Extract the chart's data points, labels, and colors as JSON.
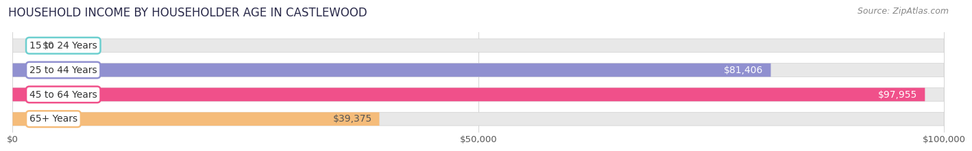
{
  "title": "HOUSEHOLD INCOME BY HOUSEHOLDER AGE IN CASTLEWOOD",
  "source": "Source: ZipAtlas.com",
  "categories": [
    "15 to 24 Years",
    "25 to 44 Years",
    "45 to 64 Years",
    "65+ Years"
  ],
  "values": [
    0,
    81406,
    97955,
    39375
  ],
  "bar_colors": [
    "#6dcfcf",
    "#9090d0",
    "#f0508a",
    "#f5bc7a"
  ],
  "label_text_color": "#333333",
  "xlim": [
    0,
    100000
  ],
  "xticks": [
    0,
    50000,
    100000
  ],
  "xtick_labels": [
    "$0",
    "$50,000",
    "$100,000"
  ],
  "background_color": "#ffffff",
  "bar_bg_color": "#e8e8e8",
  "bar_bg_border_color": "#d0d0d0",
  "title_fontsize": 12,
  "tick_fontsize": 9.5,
  "source_fontsize": 9,
  "cat_fontsize": 10,
  "val_fontsize": 10,
  "value_labels": [
    "$0",
    "$81,406",
    "$97,955",
    "$39,375"
  ],
  "val_label_colors": [
    "#555555",
    "#ffffff",
    "#ffffff",
    "#555555"
  ]
}
